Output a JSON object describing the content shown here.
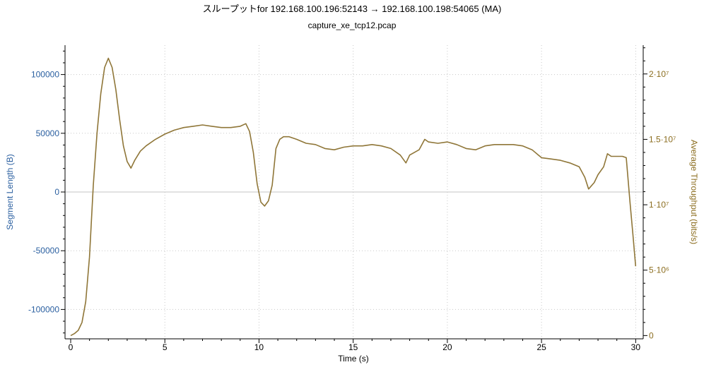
{
  "window": {
    "title": "スループットfor 192.168.100.196:52143 → 192.168.100.198:54065 (MA)",
    "subtitle": "capture_xe_tcp12.pcap"
  },
  "colors": {
    "left_axis": "#2a5fa0",
    "right_axis": "#8b6d1f",
    "series": "#8f7638",
    "grid": "#c8c8c8",
    "zero_line": "#c4c4c4",
    "axis": "#000000"
  },
  "chart_data": {
    "type": "line",
    "title": "スループットfor 192.168.100.196:52143 → 192.168.100.198:54065 (MA)",
    "subtitle": "capture_xe_tcp12.pcap",
    "xlabel": "Time (s)",
    "ylabel_left": "Segment Length (B)",
    "ylabel_right": "Average Throughput (bits/s)",
    "xlim": [
      -0.3,
      30.4
    ],
    "ylim_left": [
      -125000,
      125000
    ],
    "ylim_right": [
      -250000,
      22200000
    ],
    "x_ticks": [
      0,
      5,
      10,
      15,
      20,
      25,
      30
    ],
    "x_tick_labels": [
      "0",
      "5",
      "10",
      "15",
      "20",
      "25",
      "30"
    ],
    "y_left_ticks": [
      -100000,
      -50000,
      0,
      50000,
      100000
    ],
    "y_left_tick_labels": [
      "-100000",
      "-50000",
      "0",
      "50000",
      "100000"
    ],
    "y_right_ticks": [
      0,
      5000000,
      10000000,
      15000000,
      20000000
    ],
    "y_right_tick_labels": [
      "0",
      "5·10⁶",
      "1·10⁷",
      "1.5·10⁷",
      "2·10⁷"
    ],
    "grid": true,
    "legend": "none",
    "series": [
      {
        "name": "Average Throughput (MA)",
        "axis": "right",
        "x": [
          0.0,
          0.2,
          0.4,
          0.6,
          0.8,
          1.0,
          1.2,
          1.4,
          1.6,
          1.8,
          2.0,
          2.2,
          2.4,
          2.6,
          2.8,
          3.0,
          3.2,
          3.4,
          3.7,
          4.0,
          4.5,
          5.0,
          5.5,
          6.0,
          6.5,
          7.0,
          7.5,
          8.0,
          8.5,
          9.0,
          9.3,
          9.5,
          9.7,
          9.9,
          10.1,
          10.3,
          10.5,
          10.7,
          10.9,
          11.1,
          11.3,
          11.6,
          12.0,
          12.5,
          13.0,
          13.5,
          14.0,
          14.5,
          15.0,
          15.5,
          16.0,
          16.5,
          17.0,
          17.5,
          17.8,
          18.0,
          18.5,
          18.8,
          19.0,
          19.5,
          20.0,
          20.5,
          21.0,
          21.5,
          22.0,
          22.5,
          23.0,
          23.5,
          24.0,
          24.5,
          25.0,
          25.5,
          26.0,
          26.5,
          27.0,
          27.3,
          27.5,
          27.8,
          28.0,
          28.3,
          28.5,
          28.7,
          29.0,
          29.3,
          29.5,
          29.7,
          29.85,
          30.0
        ],
        "y": [
          0.0,
          0.15,
          0.4,
          1.0,
          2.6,
          6.0,
          11.5,
          15.5,
          18.5,
          20.5,
          21.2,
          20.5,
          18.8,
          16.5,
          14.5,
          13.3,
          12.8,
          13.4,
          14.1,
          14.5,
          15.0,
          15.4,
          15.7,
          15.9,
          16.0,
          16.1,
          16.0,
          15.9,
          15.9,
          16.0,
          16.2,
          15.6,
          14.0,
          11.6,
          10.2,
          9.9,
          10.3,
          11.5,
          14.3,
          15.0,
          15.2,
          15.2,
          15.0,
          14.7,
          14.6,
          14.3,
          14.2,
          14.4,
          14.5,
          14.5,
          14.6,
          14.5,
          14.3,
          13.8,
          13.2,
          13.8,
          14.2,
          15.0,
          14.8,
          14.7,
          14.8,
          14.6,
          14.3,
          14.2,
          14.5,
          14.6,
          14.6,
          14.6,
          14.5,
          14.2,
          13.6,
          13.5,
          13.4,
          13.2,
          12.9,
          12.1,
          11.2,
          11.7,
          12.3,
          12.9,
          13.9,
          13.7,
          13.7,
          13.7,
          13.6,
          10.2,
          7.8,
          5.3
        ]
      }
    ]
  }
}
